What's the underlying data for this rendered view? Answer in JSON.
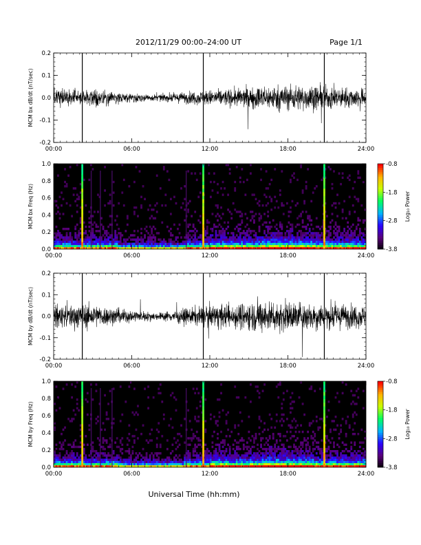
{
  "header": {
    "title": "2012/11/29  00:00–24:00 UT",
    "page": "Page 1/1"
  },
  "x_axis_label": "Universal Time (hh:mm)",
  "colorbar": {
    "label": "Log₁₀ Power",
    "ticks": [
      "-0.8",
      "-1.8",
      "-2.8",
      "-3.8"
    ],
    "range": [
      -3.8,
      -0.8
    ],
    "colormap": [
      "#000000",
      "#5a0078",
      "#2a00ff",
      "#00b4ff",
      "#00ff60",
      "#c8ff00",
      "#ffb400",
      "#ff0000"
    ]
  },
  "chart_data": [
    {
      "type": "line",
      "ylabel": "MCM bx dB/dt (nT/sec)",
      "xlim": [
        0,
        24
      ],
      "ylim": [
        -0.2,
        0.2
      ],
      "x_ticks": [
        "00:00",
        "06:00",
        "12:00",
        "18:00",
        "24:00"
      ],
      "y_ticks": [
        "0.2",
        "0.1",
        "0.0",
        "-0.1",
        "-0.2"
      ],
      "noise_envelope": {
        "hours": [
          0,
          2,
          3,
          6,
          8,
          10,
          12,
          14,
          16,
          18,
          20,
          22,
          24
        ],
        "amplitude": [
          0.03,
          0.035,
          0.03,
          0.018,
          0.012,
          0.022,
          0.03,
          0.035,
          0.045,
          0.05,
          0.048,
          0.04,
          0.035
        ]
      },
      "spikes_hours": [
        2.2,
        11.5,
        20.8
      ]
    },
    {
      "type": "heatmap",
      "ylabel": "MCM bx Freq (Hz)",
      "xlim": [
        0,
        24
      ],
      "ylim": [
        0,
        1.0
      ],
      "x_ticks": [
        "00:00",
        "06:00",
        "12:00",
        "18:00",
        "24:00"
      ],
      "y_ticks": [
        "1.0",
        "0.8",
        "0.6",
        "0.4",
        "0.2",
        "0.0"
      ],
      "broadband_events_hours": [
        2.2,
        11.5,
        20.8
      ],
      "weak_events_hours": [
        2.9,
        3.6,
        4.5,
        10.2
      ]
    },
    {
      "type": "line",
      "ylabel": "MCM by dB/dt (nT/sec)",
      "xlim": [
        0,
        24
      ],
      "ylim": [
        -0.2,
        0.2
      ],
      "x_ticks": [
        "00:00",
        "06:00",
        "12:00",
        "18:00",
        "24:00"
      ],
      "y_ticks": [
        "0.2",
        "0.1",
        "0.0",
        "-0.1",
        "-0.2"
      ],
      "noise_envelope": {
        "hours": [
          0,
          2,
          3,
          6,
          8,
          10,
          12,
          14,
          16,
          18,
          20,
          22,
          24
        ],
        "amplitude": [
          0.045,
          0.05,
          0.045,
          0.025,
          0.015,
          0.03,
          0.045,
          0.05,
          0.065,
          0.06,
          0.055,
          0.05,
          0.045
        ]
      },
      "spikes_hours": [
        2.2,
        11.5,
        20.8
      ]
    },
    {
      "type": "heatmap",
      "ylabel": "MCM by Freq (Hz)",
      "xlim": [
        0,
        24
      ],
      "ylim": [
        0,
        1.0
      ],
      "x_ticks": [
        "00:00",
        "06:00",
        "12:00",
        "18:00",
        "24:00"
      ],
      "y_ticks": [
        "1.0",
        "0.8",
        "0.6",
        "0.4",
        "0.2",
        "0.0"
      ],
      "broadband_events_hours": [
        2.2,
        11.5,
        20.8
      ],
      "weak_events_hours": [
        2.9,
        3.6,
        4.5,
        10.2
      ]
    }
  ]
}
